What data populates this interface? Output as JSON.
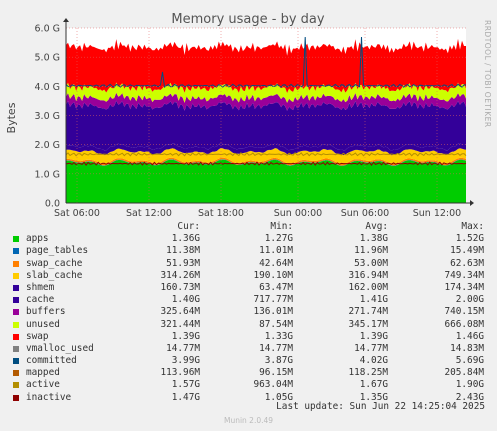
{
  "chart_data": {
    "type": "area",
    "title": "Memory usage - by day",
    "ylabel": "Bytes",
    "side_text": "RRDTOOL / TOBI OETIKER",
    "ylim": [
      0,
      6
    ],
    "y_unit": "G",
    "yticks": [
      "0.0",
      "1.0 G",
      "2.0 G",
      "3.0 G",
      "4.0 G",
      "5.0 G",
      "6.0 G"
    ],
    "xticks": [
      "Sat 06:00",
      "Sat 12:00",
      "Sat 18:00",
      "Sun 00:00",
      "Sun 06:00",
      "Sun 12:00"
    ],
    "x_range": [
      "Sat 04:05",
      "Sun 14:25"
    ],
    "columns": [
      "Cur:",
      "Min:",
      "Avg:",
      "Max:"
    ],
    "series": [
      {
        "name": "apps",
        "color": "#00cc00",
        "cur": "1.36G",
        "min": "1.27G",
        "avg": "1.38G",
        "max": "1.52G",
        "value": 1.38
      },
      {
        "name": "page_tables",
        "color": "#0066b3",
        "cur": "11.38M",
        "min": "11.01M",
        "avg": "11.96M",
        "max": "15.49M",
        "value": 0.012
      },
      {
        "name": "swap_cache",
        "color": "#ff8000",
        "cur": "51.93M",
        "min": "42.64M",
        "avg": "53.00M",
        "max": "62.63M",
        "value": 0.053
      },
      {
        "name": "slab_cache",
        "color": "#ffcc00",
        "cur": "314.26M",
        "min": "190.10M",
        "avg": "316.94M",
        "max": "749.34M",
        "value": 0.317
      },
      {
        "name": "shmem",
        "color": "#330099",
        "cur": "160.73M",
        "min": "63.47M",
        "avg": "162.00M",
        "max": "174.34M",
        "value": 0.162
      },
      {
        "name": "cache",
        "color": "#330099",
        "cur": "1.40G",
        "min": "717.77M",
        "avg": "1.41G",
        "max": "2.00G",
        "value": 1.41
      },
      {
        "name": "buffers",
        "color": "#990099",
        "cur": "325.64M",
        "min": "136.01M",
        "avg": "271.74M",
        "max": "740.15M",
        "value": 0.272
      },
      {
        "name": "unused",
        "color": "#ccff00",
        "cur": "321.44M",
        "min": "87.54M",
        "avg": "345.17M",
        "max": "666.08M",
        "value": 0.345
      },
      {
        "name": "swap",
        "color": "#ff0000",
        "cur": "1.39G",
        "min": "1.33G",
        "avg": "1.39G",
        "max": "1.46G",
        "value": 1.39
      },
      {
        "name": "vmalloc_used",
        "color": "#808080",
        "cur": "14.77M",
        "min": "14.77M",
        "avg": "14.77M",
        "max": "14.83M"
      },
      {
        "name": "committed",
        "color": "#004d80",
        "cur": "3.99G",
        "min": "3.87G",
        "avg": "4.02G",
        "max": "5.69G"
      },
      {
        "name": "mapped",
        "color": "#b35a00",
        "cur": "113.96M",
        "min": "96.15M",
        "avg": "118.25M",
        "max": "205.84M"
      },
      {
        "name": "active",
        "color": "#b38f00",
        "cur": "1.57G",
        "min": "963.04M",
        "avg": "1.67G",
        "max": "1.90G"
      },
      {
        "name": "inactive",
        "color": "#8f0000",
        "cur": "1.47G",
        "min": "1.05G",
        "avg": "1.35G",
        "max": "2.43G"
      }
    ]
  },
  "last_update": "Last update: Sun Jun 22 14:25:04 2025",
  "footer": "Munin 2.0.49"
}
